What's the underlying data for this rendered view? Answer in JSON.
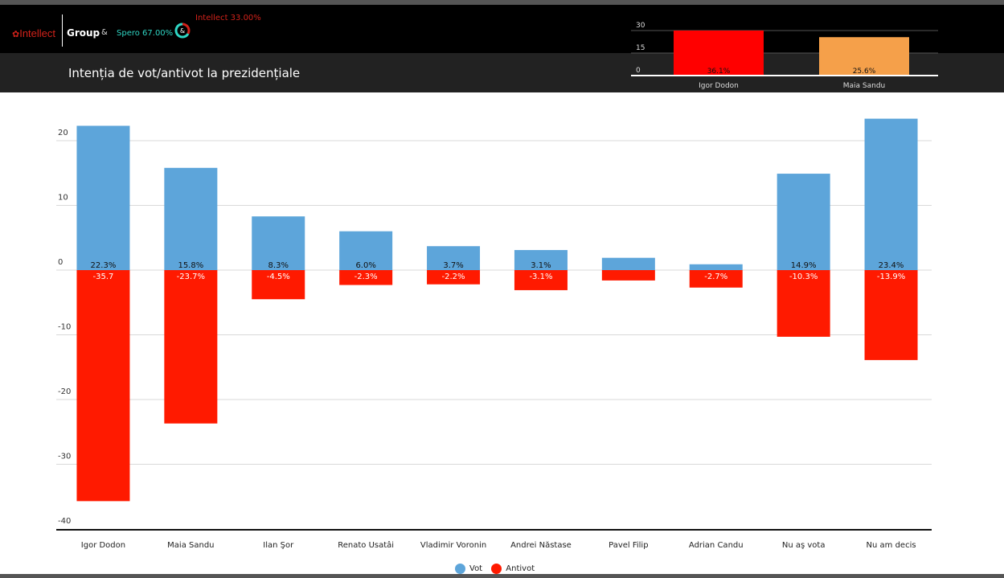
{
  "header": {
    "brand": "Intellect",
    "group": "Group",
    "amp": "&",
    "title": "Intenția de vot/antivot la prezidențiale",
    "donut": {
      "spero_label": "Spero 67.00%",
      "intellect_label": "Intellect 33.00%",
      "center": "&",
      "spero_share": 67.0,
      "intellect_share": 33.0,
      "spero_color": "#2fd6c4",
      "intellect_color": "#d2221a"
    }
  },
  "mini_chart": {
    "type": "bar",
    "categories": [
      "Igor Dodon",
      "Maia Sandu"
    ],
    "values": [
      36.1,
      25.6
    ],
    "labels": [
      "36.1%",
      "25.6%"
    ],
    "colors": [
      "#ff0000",
      "#f5a04a"
    ],
    "yticks": [
      "30",
      "15",
      "0"
    ],
    "ylim": [
      0,
      30
    ]
  },
  "chart_data": {
    "type": "bar",
    "title": "Intenția de vot/antivot la prezidențiale",
    "categories": [
      "Igor Dodon",
      "Maia Sandu",
      "Ilan Şor",
      "Renato Usatâi",
      "Vladimir Voronin",
      "Andrei Năstase",
      "Pavel Filip",
      "Adrian Candu",
      "Nu aş vota",
      "Nu am decis"
    ],
    "series": [
      {
        "name": "Vot",
        "color": "#5da5da",
        "values": [
          22.3,
          15.8,
          8.3,
          6.0,
          3.7,
          3.1,
          1.9,
          0.9,
          14.9,
          23.4
        ],
        "labels": [
          "22.3%",
          "15.8%",
          "8.3%",
          "6.0%",
          "3.7%",
          "3.1%",
          "",
          "",
          "14.9%",
          "23.4%"
        ]
      },
      {
        "name": "Antivot",
        "color": "#ff1a00",
        "values": [
          -35.7,
          -23.7,
          -4.5,
          -2.3,
          -2.2,
          -3.1,
          -1.6,
          -2.7,
          -10.3,
          -13.9
        ],
        "labels": [
          "-35.7",
          "-23.7%",
          "-4.5%",
          "-2.3%",
          "-2.2%",
          "-3.1%",
          "",
          "-2.7%",
          "-10.3%",
          "-13.9%"
        ]
      }
    ],
    "yticks": [
      "20",
      "10",
      "0",
      "-10",
      "-20",
      "-30",
      "-40"
    ],
    "ylim": [
      -40,
      24
    ],
    "grid": true,
    "legend": "bottom-center"
  }
}
